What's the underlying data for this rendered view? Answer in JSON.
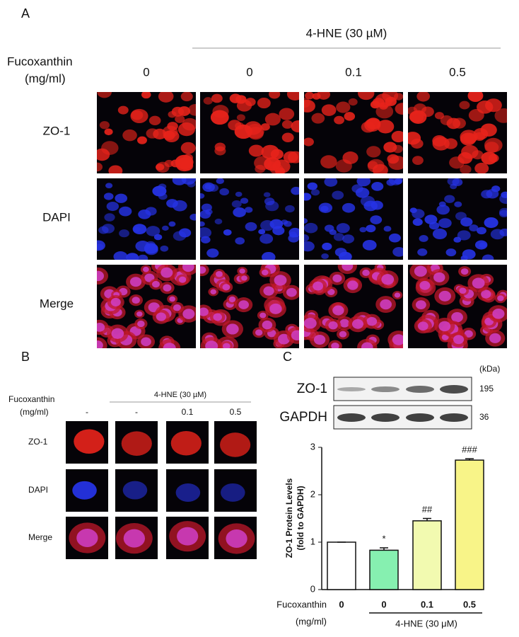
{
  "panel_a": {
    "label": "A",
    "treatment": "4-HNE (30 µM)",
    "row_header": [
      "Fucoxanthin",
      "(mg/ml)"
    ],
    "doses": [
      "0",
      "0",
      "0.1",
      "0.5"
    ],
    "stains": [
      "ZO-1",
      "DAPI",
      "Merge"
    ]
  },
  "panel_b": {
    "label": "B",
    "treatment": "4-HNE  (30 µM)",
    "row_header": [
      "Fucoxanthin",
      "(mg/ml)"
    ],
    "doses": [
      "-",
      "-",
      "0.1",
      "0.5"
    ],
    "stains": [
      "ZO-1",
      "DAPI",
      "Merge"
    ]
  },
  "panel_c": {
    "label": "C",
    "unit": "(kDa)",
    "blots": [
      {
        "protein": "ZO-1",
        "kda": 195
      },
      {
        "protein": "GAPDH",
        "kda": 36
      }
    ]
  },
  "chart_data": {
    "type": "bar",
    "ylabel": [
      "ZO-1 Protein Levels",
      "(fold to GAPDH)"
    ],
    "xlabel": [
      "Fucoxanthin",
      "(mg/ml)"
    ],
    "group_label": "4-HNE (30 μM)",
    "categories": [
      "0",
      "0",
      "0.1",
      "0.5"
    ],
    "values": [
      1,
      0.83,
      1.45,
      2.73
    ],
    "errors": [
      0,
      0.05,
      0.05,
      0.03
    ],
    "annotations": [
      null,
      "*",
      "##",
      "###"
    ],
    "colors": [
      "#ffffff",
      "#86f0b0",
      "#f2fab0",
      "#f8f488"
    ],
    "ylim": [
      0,
      3
    ],
    "yticks": [
      0,
      1,
      2,
      3
    ]
  }
}
